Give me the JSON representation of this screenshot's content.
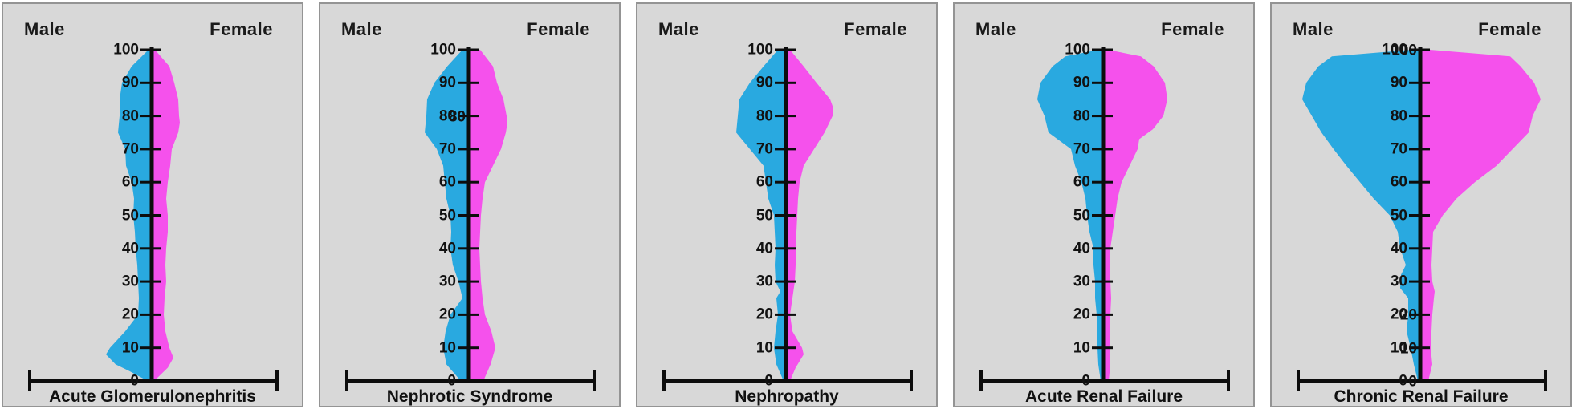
{
  "labels": {
    "male": "Male",
    "female": "Female"
  },
  "colors": {
    "male": "#29a9e0",
    "female": "#f551ec",
    "ink": "#0d0d0d",
    "panel_bg": "#d8d8d8",
    "panel_border": "#949494",
    "page_bg": "#ffffff"
  },
  "y_axis": {
    "min": 0,
    "max": 100,
    "tick_step": 10,
    "ticks": [
      {
        "v": 0,
        "label": "0"
      },
      {
        "v": 10,
        "label": "10"
      },
      {
        "v": 20,
        "label": "20"
      },
      {
        "v": 30,
        "label": "30"
      },
      {
        "v": 40,
        "label": "40"
      },
      {
        "v": 50,
        "label": "50"
      },
      {
        "v": 60,
        "label": "60"
      },
      {
        "v": 70,
        "label": "70"
      },
      {
        "v": 80,
        "label": "80"
      },
      {
        "v": 90,
        "label": "90"
      },
      {
        "v": 100,
        "label": "100"
      }
    ]
  },
  "units_note": "x axis has no numeric scale in the figure; series widths are half-widths in display pixels read from the image",
  "chart_data": [
    {
      "type": "area",
      "variant": "back-to-back age violin / population pyramid",
      "title": "Acute Glomerulonephritis",
      "legend": [
        "Male",
        "Female"
      ],
      "y_axis": {
        "min": 0,
        "max": 100,
        "tick_step": 10
      },
      "ghost_tick_labels": [],
      "series": [
        {
          "name": "Male",
          "side": "left",
          "color_key": "male",
          "points": [
            [
              0,
              5
            ],
            [
              3,
              28
            ],
            [
              5,
              45
            ],
            [
              8,
              57
            ],
            [
              10,
              52
            ],
            [
              15,
              33
            ],
            [
              20,
              17
            ],
            [
              25,
              16
            ],
            [
              30,
              17
            ],
            [
              35,
              18
            ],
            [
              40,
              20
            ],
            [
              45,
              21
            ],
            [
              50,
              23
            ],
            [
              55,
              22
            ],
            [
              60,
              25
            ],
            [
              65,
              32
            ],
            [
              70,
              33
            ],
            [
              75,
              42
            ],
            [
              80,
              40
            ],
            [
              85,
              40
            ],
            [
              90,
              37
            ],
            [
              95,
              25
            ],
            [
              100,
              4
            ]
          ]
        },
        {
          "name": "Female",
          "side": "right",
          "color_key": "female",
          "points": [
            [
              0,
              3
            ],
            [
              4,
              20
            ],
            [
              7,
              27
            ],
            [
              10,
              22
            ],
            [
              15,
              17
            ],
            [
              20,
              15
            ],
            [
              25,
              16
            ],
            [
              30,
              18
            ],
            [
              35,
              17
            ],
            [
              40,
              18
            ],
            [
              45,
              20
            ],
            [
              50,
              20
            ],
            [
              55,
              18
            ],
            [
              60,
              20
            ],
            [
              65,
              23
            ],
            [
              70,
              25
            ],
            [
              75,
              33
            ],
            [
              78,
              35
            ],
            [
              80,
              34
            ],
            [
              85,
              33
            ],
            [
              90,
              28
            ],
            [
              95,
              22
            ],
            [
              100,
              4
            ]
          ]
        }
      ]
    },
    {
      "type": "area",
      "variant": "back-to-back age violin / population pyramid",
      "title": "Nephrotic Syndrome",
      "legend": [
        "Male",
        "Female"
      ],
      "y_axis": {
        "min": 0,
        "max": 100,
        "tick_step": 10
      },
      "ghost_tick_labels": [
        80
      ],
      "series": [
        {
          "name": "Male",
          "side": "left",
          "color_key": "male",
          "points": [
            [
              0,
              10
            ],
            [
              5,
              28
            ],
            [
              10,
              32
            ],
            [
              15,
              29
            ],
            [
              20,
              23
            ],
            [
              25,
              8
            ],
            [
              30,
              13
            ],
            [
              35,
              20
            ],
            [
              40,
              23
            ],
            [
              45,
              22
            ],
            [
              50,
              23
            ],
            [
              55,
              28
            ],
            [
              60,
              30
            ],
            [
              65,
              32
            ],
            [
              70,
              40
            ],
            [
              75,
              55
            ],
            [
              80,
              53
            ],
            [
              85,
              52
            ],
            [
              90,
              43
            ],
            [
              95,
              27
            ],
            [
              100,
              8
            ]
          ]
        },
        {
          "name": "Female",
          "side": "right",
          "color_key": "female",
          "points": [
            [
              0,
              18
            ],
            [
              5,
              27
            ],
            [
              10,
              33
            ],
            [
              15,
              28
            ],
            [
              20,
              20
            ],
            [
              25,
              17
            ],
            [
              30,
              15
            ],
            [
              35,
              14
            ],
            [
              40,
              13
            ],
            [
              45,
              14
            ],
            [
              50,
              15
            ],
            [
              55,
              17
            ],
            [
              60,
              20
            ],
            [
              65,
              30
            ],
            [
              70,
              40
            ],
            [
              75,
              46
            ],
            [
              78,
              48
            ],
            [
              80,
              47
            ],
            [
              85,
              43
            ],
            [
              90,
              35
            ],
            [
              95,
              30
            ],
            [
              100,
              14
            ]
          ]
        }
      ]
    },
    {
      "type": "area",
      "variant": "back-to-back age violin / population pyramid",
      "title": "Nephropathy",
      "legend": [
        "Male",
        "Female"
      ],
      "y_axis": {
        "min": 0,
        "max": 100,
        "tick_step": 10
      },
      "ghost_tick_labels": [],
      "series": [
        {
          "name": "Male",
          "side": "left",
          "color_key": "male",
          "points": [
            [
              0,
              3
            ],
            [
              5,
              12
            ],
            [
              10,
              15
            ],
            [
              15,
              13
            ],
            [
              20,
              10
            ],
            [
              25,
              12
            ],
            [
              27,
              7
            ],
            [
              30,
              13
            ],
            [
              35,
              14
            ],
            [
              40,
              13
            ],
            [
              45,
              14
            ],
            [
              50,
              15
            ],
            [
              55,
              22
            ],
            [
              60,
              25
            ],
            [
              65,
              28
            ],
            [
              70,
              45
            ],
            [
              75,
              62
            ],
            [
              80,
              60
            ],
            [
              85,
              58
            ],
            [
              90,
              45
            ],
            [
              95,
              28
            ],
            [
              100,
              10
            ]
          ]
        },
        {
          "name": "Female",
          "side": "right",
          "color_key": "female",
          "points": [
            [
              0,
              5
            ],
            [
              4,
              12
            ],
            [
              8,
              22
            ],
            [
              10,
              20
            ],
            [
              15,
              8
            ],
            [
              20,
              5
            ],
            [
              25,
              8
            ],
            [
              30,
              11
            ],
            [
              35,
              12
            ],
            [
              40,
              12
            ],
            [
              45,
              13
            ],
            [
              50,
              14
            ],
            [
              55,
              15
            ],
            [
              60,
              17
            ],
            [
              65,
              22
            ],
            [
              70,
              35
            ],
            [
              75,
              48
            ],
            [
              80,
              58
            ],
            [
              83,
              58
            ],
            [
              85,
              55
            ],
            [
              90,
              38
            ],
            [
              95,
              22
            ],
            [
              100,
              5
            ]
          ]
        }
      ]
    },
    {
      "type": "area",
      "variant": "back-to-back age violin / population pyramid",
      "title": "Acute Renal Failure",
      "legend": [
        "Male",
        "Female"
      ],
      "y_axis": {
        "min": 0,
        "max": 100,
        "tick_step": 10
      },
      "ghost_tick_labels": [],
      "series": [
        {
          "name": "Male",
          "side": "left",
          "color_key": "male",
          "points": [
            [
              0,
              3
            ],
            [
              5,
              6
            ],
            [
              10,
              7
            ],
            [
              15,
              7
            ],
            [
              20,
              8
            ],
            [
              25,
              10
            ],
            [
              30,
              10
            ],
            [
              35,
              12
            ],
            [
              40,
              12
            ],
            [
              45,
              17
            ],
            [
              50,
              20
            ],
            [
              55,
              22
            ],
            [
              60,
              27
            ],
            [
              65,
              35
            ],
            [
              70,
              40
            ],
            [
              75,
              68
            ],
            [
              80,
              73
            ],
            [
              85,
              82
            ],
            [
              90,
              78
            ],
            [
              95,
              63
            ],
            [
              98,
              47
            ],
            [
              100,
              5
            ]
          ]
        },
        {
          "name": "Female",
          "side": "right",
          "color_key": "female",
          "points": [
            [
              0,
              7
            ],
            [
              5,
              9
            ],
            [
              10,
              8
            ],
            [
              15,
              8
            ],
            [
              20,
              9
            ],
            [
              25,
              10
            ],
            [
              30,
              9
            ],
            [
              35,
              8
            ],
            [
              40,
              9
            ],
            [
              45,
              12
            ],
            [
              50,
              15
            ],
            [
              55,
              18
            ],
            [
              60,
              23
            ],
            [
              65,
              33
            ],
            [
              70,
              43
            ],
            [
              73,
              45
            ],
            [
              76,
              62
            ],
            [
              80,
              75
            ],
            [
              85,
              80
            ],
            [
              90,
              77
            ],
            [
              95,
              63
            ],
            [
              98,
              47
            ],
            [
              100,
              6
            ]
          ]
        }
      ]
    },
    {
      "type": "area",
      "variant": "back-to-back age violin / population pyramid",
      "title": "Chronic Renal Failure",
      "legend": [
        "Male",
        "Female"
      ],
      "y_axis": {
        "min": 0,
        "max": 100,
        "tick_step": 10
      },
      "ghost_tick_labels": [
        100,
        20,
        10,
        0
      ],
      "series": [
        {
          "name": "Male",
          "side": "left",
          "color_key": "male",
          "points": [
            [
              0,
              3
            ],
            [
              5,
              8
            ],
            [
              10,
              12
            ],
            [
              15,
              17
            ],
            [
              20,
              15
            ],
            [
              25,
              15
            ],
            [
              28,
              25
            ],
            [
              32,
              24
            ],
            [
              35,
              18
            ],
            [
              40,
              25
            ],
            [
              45,
              28
            ],
            [
              50,
              38
            ],
            [
              55,
              58
            ],
            [
              60,
              75
            ],
            [
              65,
              92
            ],
            [
              70,
              108
            ],
            [
              75,
              123
            ],
            [
              80,
              135
            ],
            [
              85,
              147
            ],
            [
              90,
              142
            ],
            [
              95,
              127
            ],
            [
              98,
              110
            ],
            [
              100,
              10
            ]
          ]
        },
        {
          "name": "Female",
          "side": "right",
          "color_key": "female",
          "points": [
            [
              0,
              10
            ],
            [
              5,
              15
            ],
            [
              10,
              13
            ],
            [
              15,
              14
            ],
            [
              20,
              15
            ],
            [
              25,
              17
            ],
            [
              27,
              18
            ],
            [
              30,
              15
            ],
            [
              35,
              14
            ],
            [
              40,
              15
            ],
            [
              45,
              16
            ],
            [
              50,
              28
            ],
            [
              55,
              45
            ],
            [
              60,
              68
            ],
            [
              65,
              95
            ],
            [
              70,
              115
            ],
            [
              75,
              135
            ],
            [
              80,
              140
            ],
            [
              85,
              150
            ],
            [
              90,
              142
            ],
            [
              95,
              125
            ],
            [
              98,
              112
            ],
            [
              100,
              12
            ]
          ]
        }
      ]
    }
  ]
}
